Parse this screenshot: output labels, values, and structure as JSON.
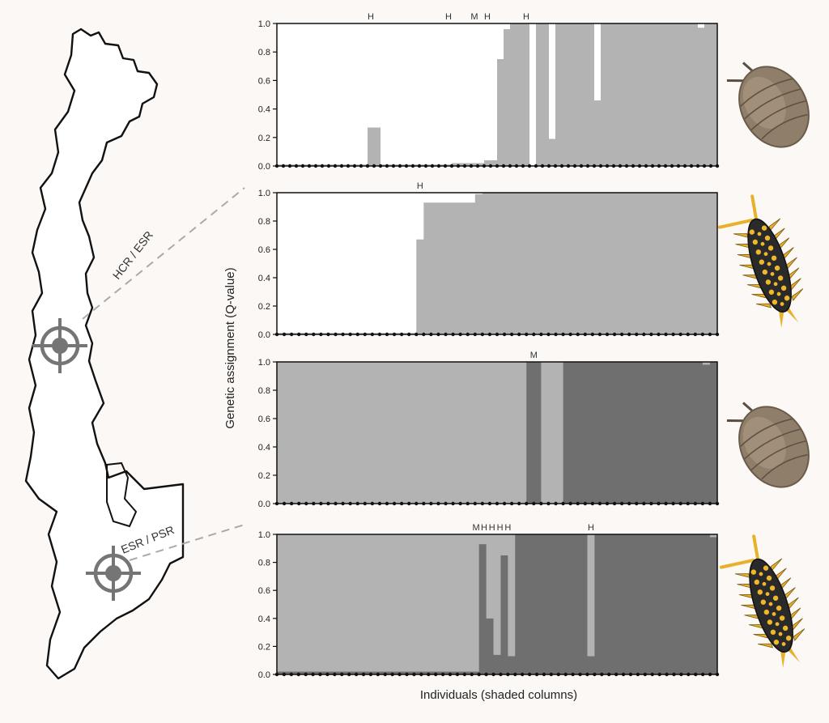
{
  "figure": {
    "ylabel": "Genetic assignment (Q-value)",
    "xlabel": "Individuals (shaded columns)"
  },
  "map": {
    "site_labels": [
      "HCR / ESR",
      "ESR / PSR"
    ]
  },
  "colors": {
    "background": "#fbf8f5",
    "light_cluster": "#ffffff",
    "mid_cluster": "#b3b3b3",
    "dark_cluster": "#6f6f6f",
    "outline": "#111111",
    "target": "#757575",
    "pill_body": "#8f7f6a",
    "spiny_body": "#2a2a2a",
    "spiny_spot": "#f0b72a"
  },
  "chart_data": [
    {
      "type": "bar",
      "stacked": true,
      "ylim": [
        0,
        1
      ],
      "yticks": [
        "0.0",
        "0.2",
        "0.4",
        "0.6",
        "0.8",
        "1.0"
      ],
      "annotations": [
        "H",
        "H",
        "M",
        "H",
        "H"
      ],
      "segments": [
        {
          "n": 14,
          "q": [
            0.99,
            0.01
          ]
        },
        {
          "n": 2,
          "q": [
            0.73,
            0.27
          ]
        },
        {
          "n": 11,
          "q": [
            0.99,
            0.01
          ]
        },
        {
          "n": 5,
          "q": [
            0.98,
            0.02
          ]
        },
        {
          "n": 2,
          "q": [
            0.96,
            0.04
          ]
        },
        {
          "n": 1,
          "q": [
            0.25,
            0.75
          ]
        },
        {
          "n": 1,
          "q": [
            0.04,
            0.96
          ]
        },
        {
          "n": 3,
          "q": [
            0,
            1
          ]
        },
        {
          "n": 1,
          "q": [
            1,
            0
          ]
        },
        {
          "n": 2,
          "q": [
            0,
            1
          ]
        },
        {
          "n": 1,
          "q": [
            0.81,
            0.19
          ]
        },
        {
          "n": 6,
          "q": [
            0,
            1
          ]
        },
        {
          "n": 1,
          "q": [
            0.54,
            0.46
          ]
        },
        {
          "n": 15,
          "q": [
            0,
            1
          ]
        },
        {
          "n": 1,
          "q": [
            0.03,
            0.97
          ]
        },
        {
          "n": 2,
          "q": [
            0,
            1
          ]
        }
      ]
    },
    {
      "type": "bar",
      "stacked": true,
      "ylim": [
        0,
        1
      ],
      "yticks": [
        "0.0",
        "0.2",
        "0.4",
        "0.6",
        "0.8",
        "1.0"
      ],
      "annotations": [
        "H"
      ],
      "segments": [
        {
          "n": 19,
          "q": [
            0.99,
            0.01
          ]
        },
        {
          "n": 1,
          "q": [
            0.33,
            0.67
          ]
        },
        {
          "n": 1,
          "q": [
            0.07,
            0.93
          ]
        },
        {
          "n": 6,
          "q": [
            0.07,
            0.93
          ]
        },
        {
          "n": 1,
          "q": [
            0.01,
            0.99
          ]
        },
        {
          "n": 32,
          "q": [
            0,
            1
          ]
        }
      ]
    },
    {
      "type": "bar",
      "stacked": true,
      "ylim": [
        0,
        1
      ],
      "yticks": [
        "0.0",
        "0.2",
        "0.4",
        "0.6",
        "0.8",
        "1.0"
      ],
      "annotations": [
        "M"
      ],
      "segments": [
        {
          "n": 34,
          "q": [
            1,
            0
          ]
        },
        {
          "n": 2,
          "q": [
            0,
            1
          ]
        },
        {
          "n": 3,
          "q": [
            1,
            0
          ]
        },
        {
          "n": 19,
          "q": [
            0,
            1
          ]
        },
        {
          "n": 1,
          "q": [
            0.02,
            0.98
          ]
        },
        {
          "n": 1,
          "q": [
            0,
            1
          ]
        }
      ]
    },
    {
      "type": "bar",
      "stacked": true,
      "ylim": [
        0,
        1
      ],
      "yticks": [
        "0.0",
        "0.2",
        "0.4",
        "0.6",
        "0.8",
        "1.0"
      ],
      "annotations": [
        "M",
        "H",
        "H",
        "H",
        "H",
        "H"
      ],
      "segments": [
        {
          "n": 28,
          "q": [
            0.98,
            0.02
          ]
        },
        {
          "n": 1,
          "q": [
            0.07,
            0.93
          ]
        },
        {
          "n": 1,
          "q": [
            0.6,
            0.4
          ]
        },
        {
          "n": 1,
          "q": [
            0.86,
            0.14
          ]
        },
        {
          "n": 1,
          "q": [
            0.15,
            0.85
          ]
        },
        {
          "n": 1,
          "q": [
            0.87,
            0.13
          ]
        },
        {
          "n": 10,
          "q": [
            0,
            1
          ]
        },
        {
          "n": 1,
          "q": [
            0.87,
            0.13
          ]
        },
        {
          "n": 16,
          "q": [
            0,
            1
          ]
        },
        {
          "n": 1,
          "q": [
            0.02,
            0.98
          ]
        }
      ]
    }
  ]
}
